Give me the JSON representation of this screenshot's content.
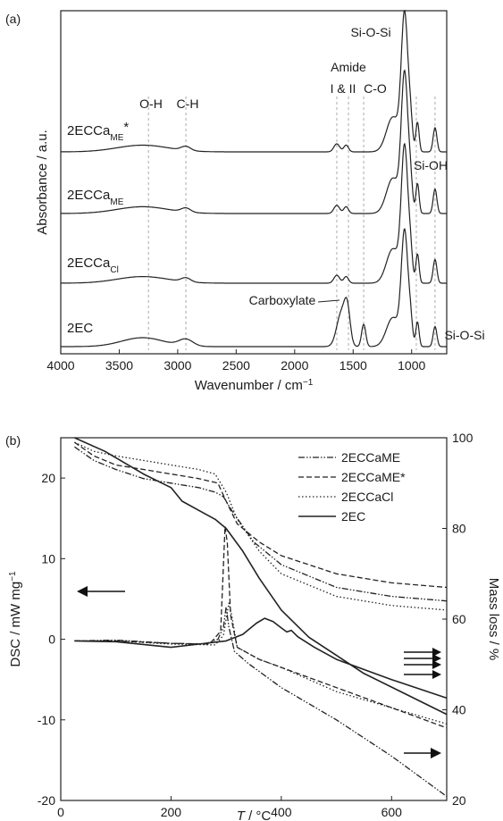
{
  "panel_labels": {
    "a": "(a)",
    "b": "(b)"
  },
  "chart_data": [
    {
      "type": "line",
      "panel": "(a)",
      "xlabel_main": "Wavenumber / cm",
      "xlabel_sup": "−1",
      "ylabel": "Absorbance / a.u.",
      "xlim": [
        4000,
        700
      ],
      "x_reversed": true,
      "xticks": [
        4000,
        3500,
        3000,
        2500,
        2000,
        1500,
        1000
      ],
      "series": [
        {
          "name_main": "2ECCa",
          "name_sub": "ME",
          "name_sup": "*",
          "id": "s1"
        },
        {
          "name_main": "2ECCa",
          "name_sub": "ME",
          "name_sup": "",
          "id": "s2"
        },
        {
          "name_main": "2ECCa",
          "name_sub": "Cl",
          "name_sup": "",
          "id": "s3"
        },
        {
          "name_main": "2EC",
          "name_sub": "",
          "name_sup": "",
          "id": "s4"
        }
      ],
      "guides": [
        3250,
        2930,
        1640,
        1540,
        1410,
        960,
        800
      ],
      "annotations": {
        "oh": "O-H",
        "ch": "C-H",
        "amide": "Amide",
        "amide_bands": "I & II",
        "co": "C-O",
        "siosi_top": "Si-O-Si",
        "sioh": "Si-OH",
        "carboxylate": "Carboxylate",
        "siosi_bottom": "Si-O-Si"
      }
    },
    {
      "type": "line",
      "panel": "(b)",
      "xlabel_var": "T",
      "xlabel_unit": " / °C",
      "ylabel_left_main": "DSC / mW mg",
      "ylabel_left_sup": "−1",
      "ylabel_right": "Mass loss / %",
      "xlim": [
        0,
        700
      ],
      "ylim_left": [
        -20,
        25
      ],
      "ylim_right": [
        20,
        100
      ],
      "xticks": [
        0,
        200,
        400,
        600
      ],
      "yticks_left": [
        -20,
        -10,
        0,
        10,
        20
      ],
      "yticks_right": [
        20,
        40,
        60,
        80,
        100
      ],
      "legend": [
        "2ECCaME",
        "2ECCaME*",
        "2ECCaCl",
        "2EC"
      ],
      "legend_placement": "top-right",
      "series": [
        {
          "name": "2ECCaME",
          "style": "dashdotdot",
          "dsc": [
            [
              25,
              -0.2
            ],
            [
              100,
              -0.1
            ],
            [
              200,
              -0.5
            ],
            [
              260,
              -0.6
            ],
            [
              285,
              0.0
            ],
            [
              295,
              1.5
            ],
            [
              300,
              4.0
            ],
            [
              305,
              1.5
            ],
            [
              315,
              -1.5
            ],
            [
              340,
              -3.0
            ],
            [
              400,
              -6.0
            ],
            [
              500,
              -10.0
            ],
            [
              600,
              -14.5
            ],
            [
              700,
              -19.5
            ]
          ],
          "mass": [
            [
              25,
              98
            ],
            [
              60,
              95
            ],
            [
              100,
              93
            ],
            [
              150,
              91
            ],
            [
              200,
              90
            ],
            [
              250,
              89
            ],
            [
              280,
              88
            ],
            [
              295,
              87
            ],
            [
              310,
              84
            ],
            [
              350,
              77
            ],
            [
              400,
              72
            ],
            [
              500,
              67
            ],
            [
              600,
              65
            ],
            [
              700,
              64
            ]
          ]
        },
        {
          "name": "2ECCaME*",
          "style": "dashed",
          "dsc": [
            [
              25,
              -0.2
            ],
            [
              100,
              -0.2
            ],
            [
              200,
              -0.5
            ],
            [
              270,
              -0.6
            ],
            [
              290,
              1.0
            ],
            [
              298,
              14.0
            ],
            [
              302,
              12.0
            ],
            [
              308,
              3.0
            ],
            [
              320,
              -1.0
            ],
            [
              360,
              -2.5
            ],
            [
              400,
              -3.5
            ],
            [
              500,
              -6.0
            ],
            [
              600,
              -8.5
            ],
            [
              700,
              -11.0
            ]
          ],
          "mass": [
            [
              25,
              99
            ],
            [
              60,
              96
            ],
            [
              100,
              94
            ],
            [
              150,
              93
            ],
            [
              200,
              92
            ],
            [
              250,
              91
            ],
            [
              285,
              90
            ],
            [
              300,
              86
            ],
            [
              320,
              81
            ],
            [
              360,
              77
            ],
            [
              400,
              74
            ],
            [
              500,
              70
            ],
            [
              600,
              68
            ],
            [
              700,
              67
            ]
          ]
        },
        {
          "name": "2ECCaCl",
          "style": "dotted",
          "dsc": [
            [
              25,
              -0.2
            ],
            [
              100,
              -0.2
            ],
            [
              200,
              -0.6
            ],
            [
              280,
              -0.7
            ],
            [
              295,
              0.5
            ],
            [
              305,
              4.5
            ],
            [
              310,
              3.0
            ],
            [
              320,
              -1.0
            ],
            [
              360,
              -2.5
            ],
            [
              400,
              -3.5
            ],
            [
              500,
              -6.5
            ],
            [
              600,
              -8.5
            ],
            [
              700,
              -10.5
            ]
          ],
          "mass": [
            [
              25,
              99
            ],
            [
              60,
              97
            ],
            [
              100,
              96
            ],
            [
              150,
              95
            ],
            [
              200,
              94
            ],
            [
              250,
              93
            ],
            [
              280,
              92
            ],
            [
              300,
              88
            ],
            [
              320,
              82
            ],
            [
              360,
              75
            ],
            [
              400,
              70
            ],
            [
              500,
              65
            ],
            [
              600,
              63
            ],
            [
              700,
              62
            ]
          ]
        },
        {
          "name": "2EC",
          "style": "solid",
          "dsc": [
            [
              25,
              -0.2
            ],
            [
              100,
              -0.3
            ],
            [
              200,
              -1.0
            ],
            [
              250,
              -0.6
            ],
            [
              300,
              -0.2
            ],
            [
              330,
              0.6
            ],
            [
              355,
              2.0
            ],
            [
              370,
              2.6
            ],
            [
              385,
              2.2
            ],
            [
              400,
              1.4
            ],
            [
              410,
              0.9
            ],
            [
              418,
              1.1
            ],
            [
              430,
              0.3
            ],
            [
              460,
              -1.0
            ],
            [
              500,
              -2.5
            ],
            [
              600,
              -5.0
            ],
            [
              700,
              -7.3
            ]
          ],
          "mass": [
            [
              25,
              100
            ],
            [
              80,
              97
            ],
            [
              150,
              92
            ],
            [
              200,
              89
            ],
            [
              220,
              86
            ],
            [
              250,
              84
            ],
            [
              280,
              82
            ],
            [
              300,
              80
            ],
            [
              330,
              75
            ],
            [
              360,
              69
            ],
            [
              400,
              62
            ],
            [
              450,
              56
            ],
            [
              500,
              52
            ],
            [
              550,
              48
            ],
            [
              600,
              45
            ],
            [
              650,
              42
            ],
            [
              700,
              39
            ]
          ]
        }
      ]
    }
  ]
}
